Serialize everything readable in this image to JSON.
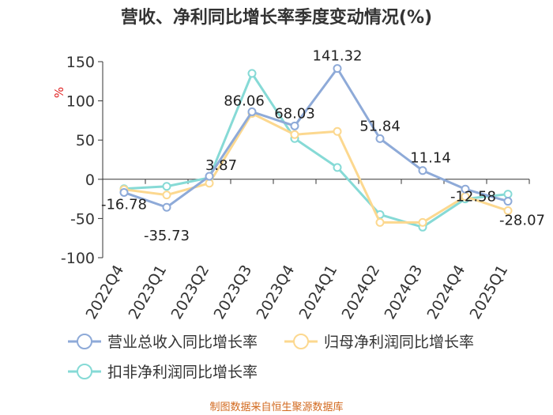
{
  "chart_data": {
    "type": "line",
    "title": "营收、净利同比增长率季度变动情况(%)",
    "ylabel": "%",
    "ylim": [
      -100,
      150
    ],
    "yticks": [
      150,
      100,
      50,
      0,
      -50,
      -100
    ],
    "categories": [
      "2022Q4",
      "2023Q1",
      "2023Q2",
      "2023Q3",
      "2023Q4",
      "2024Q1",
      "2024Q2",
      "2024Q3",
      "2024Q4",
      "2025Q1"
    ],
    "grid": false,
    "legend_position": "bottom",
    "series": [
      {
        "name": "营业总收入同比增长率",
        "color": "#8eaad8",
        "values": [
          -16.78,
          -35.73,
          3.87,
          86.06,
          68.03,
          141.32,
          51.84,
          11.14,
          -12.58,
          -28.07
        ],
        "labels": [
          "-16.78",
          "-35.73",
          "3.87",
          "86.06",
          "68.03",
          "141.32",
          "51.84",
          "11.14",
          "-12.58",
          "-28.07"
        ]
      },
      {
        "name": "归母净利润同比增长率",
        "color": "#fcd88f",
        "values": [
          -13,
          -20,
          -5,
          84,
          57,
          61,
          -55,
          -55,
          -22,
          -40
        ]
      },
      {
        "name": "扣非净利润同比增长率",
        "color": "#86dad6",
        "values": [
          -12,
          -9,
          2,
          135,
          52,
          15,
          -45,
          -61,
          -25,
          -19
        ]
      }
    ]
  },
  "footer": {
    "source": "制图数据来自恒生聚源数据库"
  }
}
